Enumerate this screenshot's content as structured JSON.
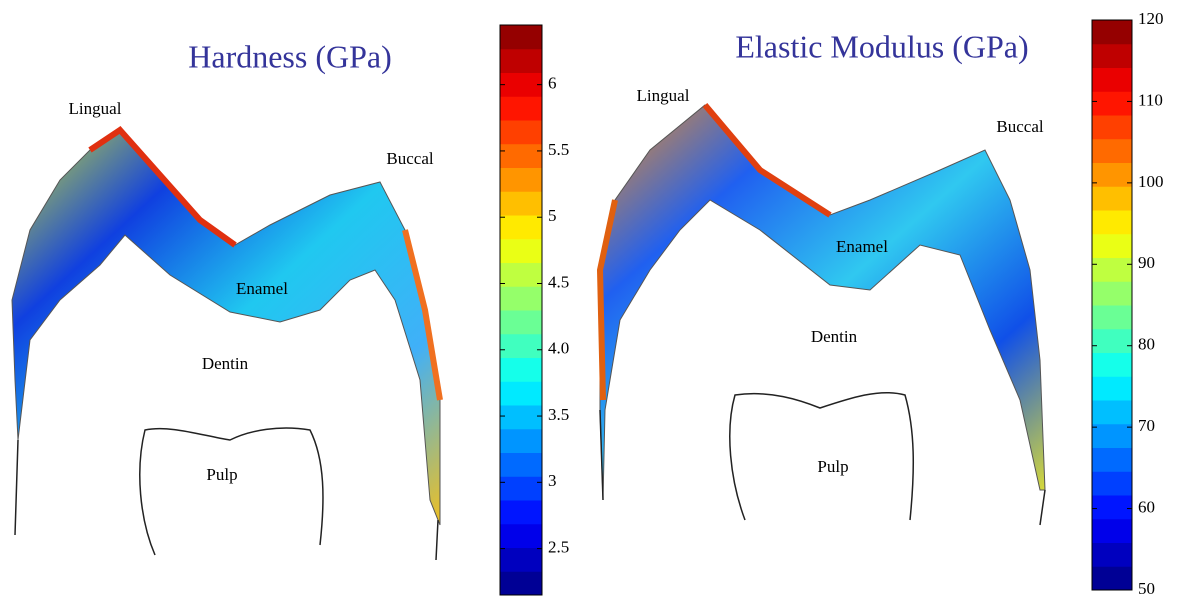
{
  "chart_data": [
    {
      "type": "contour",
      "title": "Hardness (GPa)",
      "colormap": "jet",
      "ylim": [
        2.15,
        6.45
      ],
      "yticks": [
        2.5,
        3,
        3.5,
        {
          "value": 4,
          "label": "4.0"
        },
        4.5,
        5,
        5.5,
        6
      ],
      "annotations": [
        "Lingual",
        "Buccal",
        "Enamel",
        "Dentin",
        "Pulp"
      ]
    },
    {
      "type": "contour",
      "title": "Elastic Modulus (GPa)",
      "colormap": "jet",
      "ylim": [
        50,
        120
      ],
      "yticks": [
        50,
        60,
        70,
        80,
        90,
        100,
        110,
        120
      ],
      "annotations": [
        "Lingual",
        "Buccal",
        "Enamel",
        "Dentin",
        "Pulp"
      ]
    }
  ]
}
